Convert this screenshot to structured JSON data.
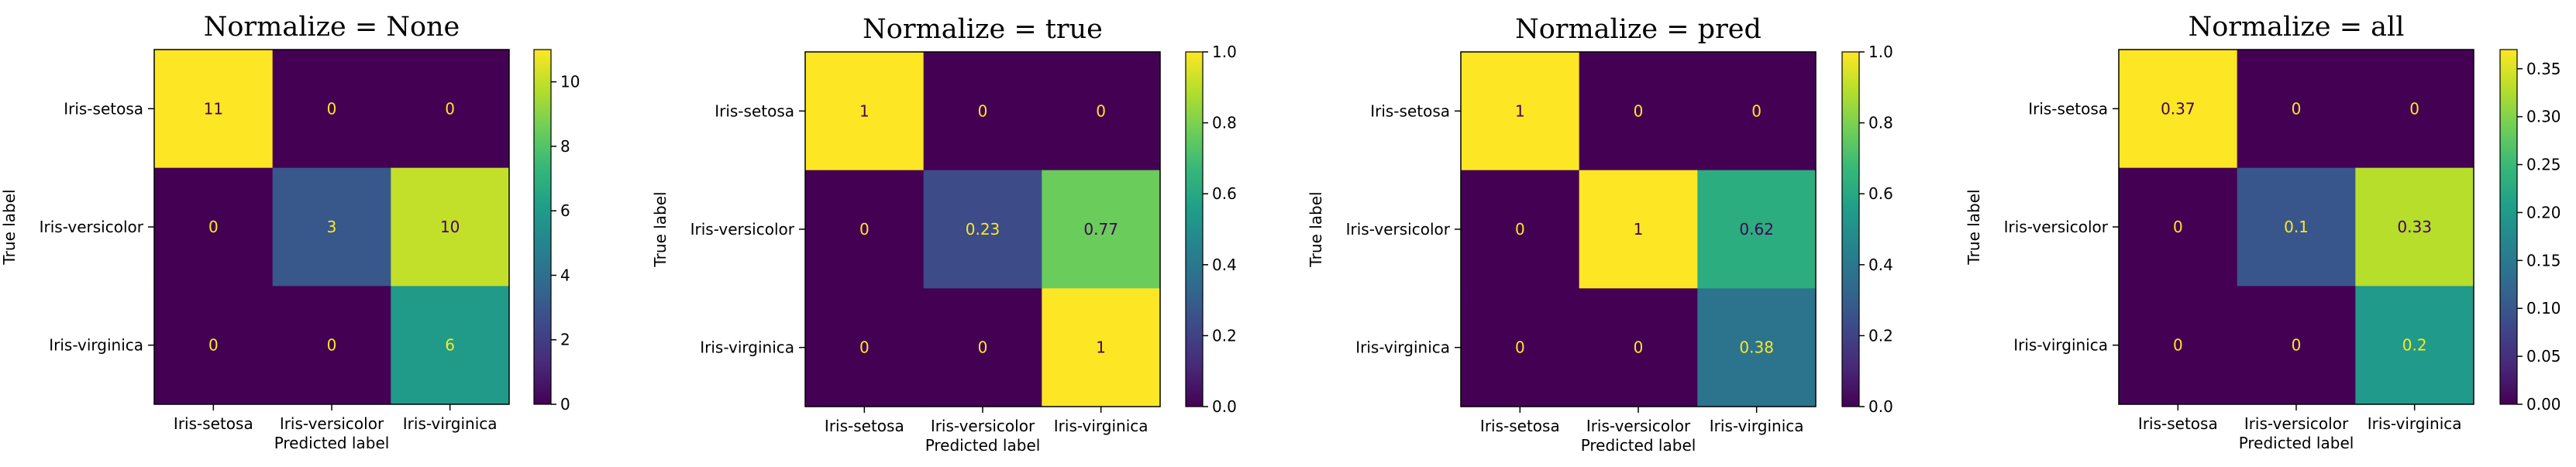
{
  "figure": {
    "background": "#ffffff"
  },
  "colormap": {
    "name": "viridis",
    "stops": [
      "#440154",
      "#482878",
      "#3e4989",
      "#31688e",
      "#26828e",
      "#1f9e89",
      "#35b779",
      "#6ece58",
      "#b5de2b",
      "#fde725"
    ]
  },
  "chart_data": [
    {
      "type": "heatmap",
      "title": "Normalize = None",
      "xlabel": "Predicted label",
      "ylabel": "True label",
      "x_categories": [
        "Iris-setosa",
        "Iris-versicolor",
        "Iris-virginica"
      ],
      "y_categories": [
        "Iris-setosa",
        "Iris-versicolor",
        "Iris-virginica"
      ],
      "values": [
        [
          11,
          0,
          0
        ],
        [
          0,
          3,
          10
        ],
        [
          0,
          0,
          6
        ]
      ],
      "labels": [
        [
          "11",
          "0",
          "0"
        ],
        [
          "0",
          "3",
          "10"
        ],
        [
          "0",
          "0",
          "6"
        ]
      ],
      "vmin": 0,
      "vmax": 11,
      "colorbar_ticks": [
        0,
        2,
        4,
        6,
        8,
        10
      ],
      "colorbar_tick_labels": [
        "0",
        "2",
        "4",
        "6",
        "8",
        "10"
      ]
    },
    {
      "type": "heatmap",
      "title": "Normalize = true",
      "xlabel": "Predicted label",
      "ylabel": "True label",
      "x_categories": [
        "Iris-setosa",
        "Iris-versicolor",
        "Iris-virginica"
      ],
      "y_categories": [
        "Iris-setosa",
        "Iris-versicolor",
        "Iris-virginica"
      ],
      "values": [
        [
          1,
          0,
          0
        ],
        [
          0,
          0.23,
          0.77
        ],
        [
          0,
          0,
          1
        ]
      ],
      "labels": [
        [
          "1",
          "0",
          "0"
        ],
        [
          "0",
          "0.23",
          "0.77"
        ],
        [
          "0",
          "0",
          "1"
        ]
      ],
      "vmin": 0,
      "vmax": 1,
      "colorbar_ticks": [
        0,
        0.2,
        0.4,
        0.6,
        0.8,
        1.0
      ],
      "colorbar_tick_labels": [
        "0.0",
        "0.2",
        "0.4",
        "0.6",
        "0.8",
        "1.0"
      ]
    },
    {
      "type": "heatmap",
      "title": "Normalize = pred",
      "xlabel": "Predicted label",
      "ylabel": "True label",
      "x_categories": [
        "Iris-setosa",
        "Iris-versicolor",
        "Iris-virginica"
      ],
      "y_categories": [
        "Iris-setosa",
        "Iris-versicolor",
        "Iris-virginica"
      ],
      "values": [
        [
          1,
          0,
          0
        ],
        [
          0,
          1,
          0.62
        ],
        [
          0,
          0,
          0.38
        ]
      ],
      "labels": [
        [
          "1",
          "0",
          "0"
        ],
        [
          "0",
          "1",
          "0.62"
        ],
        [
          "0",
          "0",
          "0.38"
        ]
      ],
      "vmin": 0,
      "vmax": 1,
      "colorbar_ticks": [
        0,
        0.2,
        0.4,
        0.6,
        0.8,
        1.0
      ],
      "colorbar_tick_labels": [
        "0.0",
        "0.2",
        "0.4",
        "0.6",
        "0.8",
        "1.0"
      ]
    },
    {
      "type": "heatmap",
      "title": "Normalize = all",
      "xlabel": "Predicted label",
      "ylabel": "True label",
      "x_categories": [
        "Iris-setosa",
        "Iris-versicolor",
        "Iris-virginica"
      ],
      "y_categories": [
        "Iris-setosa",
        "Iris-versicolor",
        "Iris-virginica"
      ],
      "values": [
        [
          0.37,
          0,
          0
        ],
        [
          0,
          0.1,
          0.33
        ],
        [
          0,
          0,
          0.2
        ]
      ],
      "labels": [
        [
          "0.37",
          "0",
          "0"
        ],
        [
          "0",
          "0.1",
          "0.33"
        ],
        [
          "0",
          "0",
          "0.2"
        ]
      ],
      "vmin": 0,
      "vmax": 0.37,
      "colorbar_ticks": [
        0,
        0.05,
        0.1,
        0.15,
        0.2,
        0.25,
        0.3,
        0.35
      ],
      "colorbar_tick_labels": [
        "0.00",
        "0.05",
        "0.10",
        "0.15",
        "0.20",
        "0.25",
        "0.30",
        "0.35"
      ]
    }
  ]
}
